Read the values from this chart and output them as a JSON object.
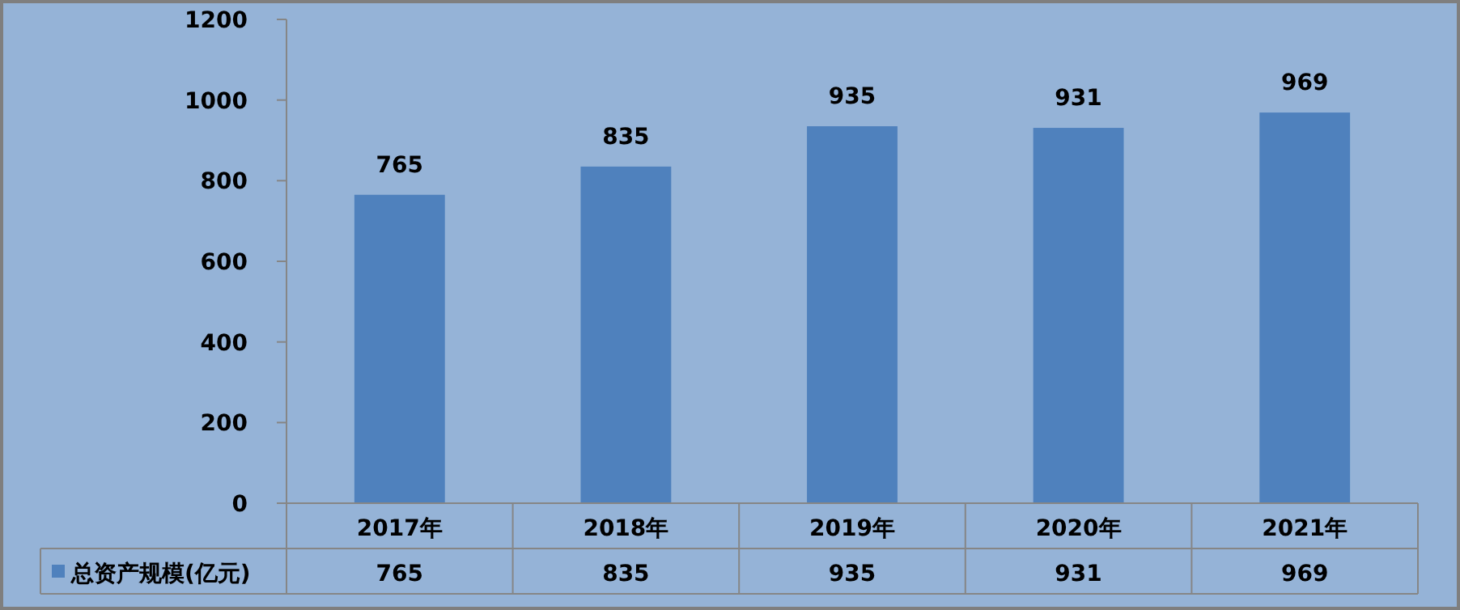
{
  "chart_data": {
    "type": "bar",
    "categories": [
      "2017年",
      "2018年",
      "2019年",
      "2020年",
      "2021年"
    ],
    "series": [
      {
        "name": "总资产规模(亿元)",
        "color": "#4f81bd",
        "values": [
          765,
          835,
          935,
          931,
          969
        ],
        "value_labels": [
          "765",
          "835",
          "935",
          "931",
          "969"
        ]
      }
    ],
    "ylim": [
      0,
      1200
    ],
    "yticks": [
      0,
      200,
      400,
      600,
      800,
      1000,
      1200
    ],
    "data_labels": true,
    "annotations": [
      "765",
      "835",
      "935",
      "931",
      "969"
    ],
    "grid": false,
    "legend": "bottom"
  }
}
